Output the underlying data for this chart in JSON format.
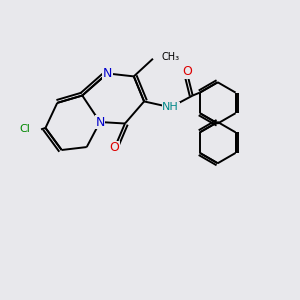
{
  "background_color": "#e8e8ec",
  "atom_colors": {
    "C": "#000000",
    "N": "#0000cc",
    "O": "#dd0000",
    "Cl": "#008800",
    "H": "#000000"
  },
  "bond_lw": 1.4,
  "font_size": 9
}
